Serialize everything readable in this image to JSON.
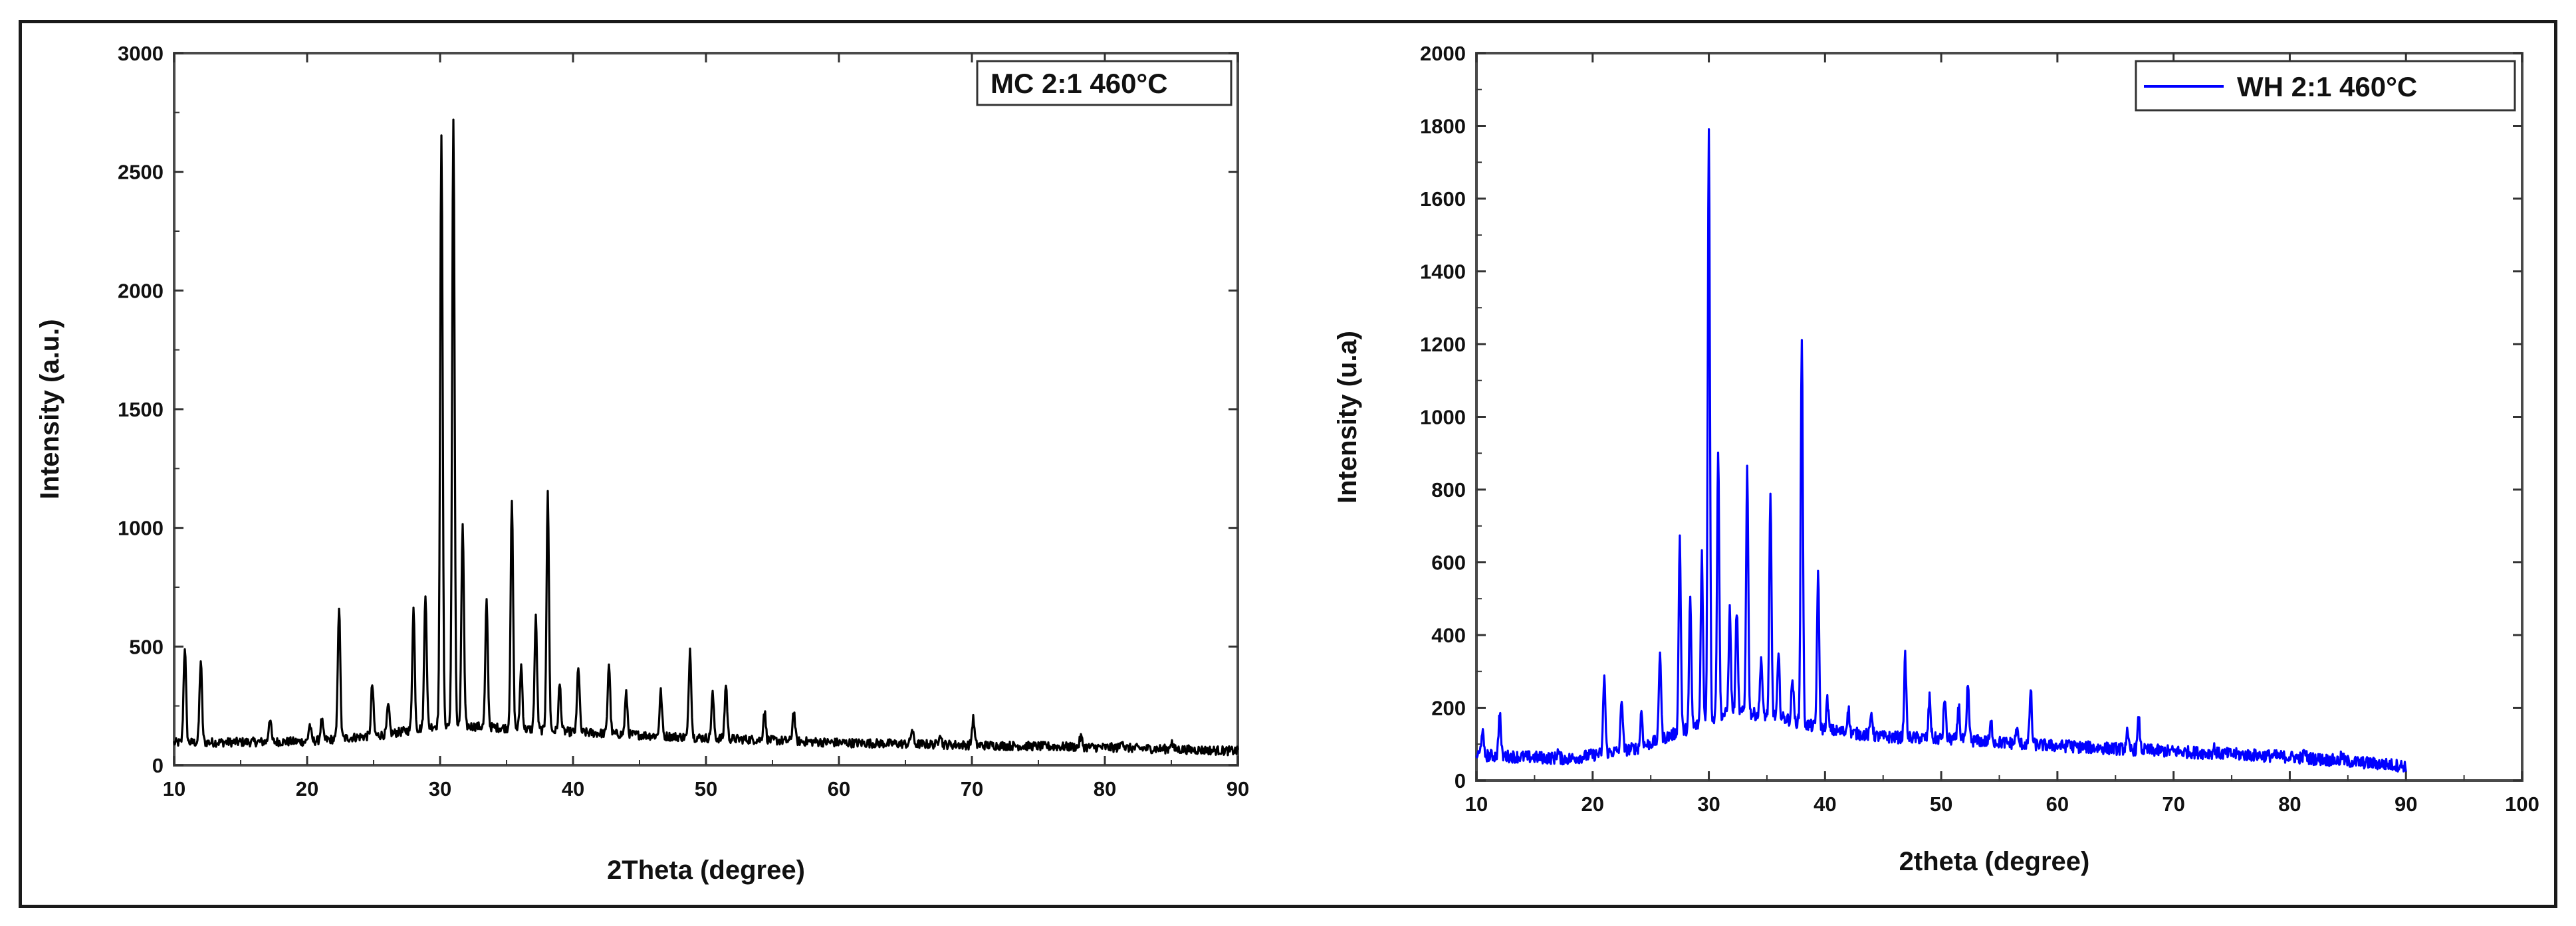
{
  "chart_data": [
    {
      "type": "line",
      "ylabel": "Intensity (a.u.)",
      "xlabel": "2Theta (degree)",
      "xlim": [
        10,
        90
      ],
      "ylim": [
        0,
        3000
      ],
      "xticks": [
        10,
        20,
        30,
        40,
        50,
        60,
        70,
        80,
        90
      ],
      "yticks": [
        0,
        500,
        1000,
        1500,
        2000,
        2500,
        3000
      ],
      "grid": false,
      "legend": {
        "placement": "top-right",
        "marker": "none"
      },
      "series": [
        {
          "name": "MC 2:1 460°C",
          "color": "#000000",
          "baseline": [
            [
              10,
              95
            ],
            [
              20,
              100
            ],
            [
              26,
              130
            ],
            [
              30,
              170
            ],
            [
              34,
              160
            ],
            [
              40,
              140
            ],
            [
              50,
              115
            ],
            [
              60,
              95
            ],
            [
              70,
              85
            ],
            [
              80,
              75
            ],
            [
              90,
              60
            ]
          ],
          "peaks": [
            [
              10.8,
              500
            ],
            [
              12.0,
              440
            ],
            [
              17.2,
              200
            ],
            [
              20.2,
              170
            ],
            [
              21.1,
              190
            ],
            [
              22.4,
              670
            ],
            [
              24.9,
              340
            ],
            [
              26.1,
              250
            ],
            [
              28.0,
              660
            ],
            [
              28.9,
              730
            ],
            [
              30.1,
              2670
            ],
            [
              31.0,
              2710
            ],
            [
              31.7,
              1020
            ],
            [
              33.5,
              690
            ],
            [
              35.4,
              1110
            ],
            [
              36.1,
              420
            ],
            [
              37.2,
              620
            ],
            [
              38.1,
              1140
            ],
            [
              39.0,
              340
            ],
            [
              40.4,
              420
            ],
            [
              42.7,
              430
            ],
            [
              44.0,
              300
            ],
            [
              46.6,
              310
            ],
            [
              48.8,
              490
            ],
            [
              50.5,
              300
            ],
            [
              51.5,
              340
            ],
            [
              54.4,
              230
            ],
            [
              56.6,
              230
            ],
            [
              65.5,
              150
            ],
            [
              67.6,
              140
            ],
            [
              70.1,
              195
            ],
            [
              78.2,
              120
            ],
            [
              81.3,
              110
            ],
            [
              85.0,
              100
            ]
          ]
        }
      ]
    },
    {
      "type": "line",
      "ylabel": "Intensity (u.a)",
      "xlabel": "2theta (degree)",
      "xlim": [
        10,
        100
      ],
      "ylim": [
        0,
        2000
      ],
      "xticks": [
        10,
        20,
        30,
        40,
        50,
        60,
        70,
        80,
        90,
        100
      ],
      "yticks": [
        0,
        200,
        400,
        600,
        800,
        1000,
        1200,
        1400,
        1600,
        1800,
        2000
      ],
      "grid": false,
      "legend": {
        "placement": "top-right",
        "marker": "line"
      },
      "series": [
        {
          "name": "WH 2:1 460°C",
          "color": "#0000ff",
          "x_end": 90,
          "baseline": [
            [
              10,
              70
            ],
            [
              18,
              60
            ],
            [
              24,
              90
            ],
            [
              28,
              140
            ],
            [
              32,
              190
            ],
            [
              36,
              175
            ],
            [
              40,
              140
            ],
            [
              45,
              120
            ],
            [
              50,
              115
            ],
            [
              55,
              105
            ],
            [
              60,
              95
            ],
            [
              70,
              80
            ],
            [
              80,
              65
            ],
            [
              90,
              40
            ]
          ],
          "peaks": [
            [
              10.5,
              140
            ],
            [
              12.0,
              190
            ],
            [
              17.0,
              80
            ],
            [
              21.0,
              290
            ],
            [
              22.5,
              230
            ],
            [
              24.2,
              190
            ],
            [
              25.8,
              360
            ],
            [
              27.5,
              670
            ],
            [
              28.4,
              500
            ],
            [
              29.4,
              630
            ],
            [
              30.0,
              1800
            ],
            [
              30.8,
              910
            ],
            [
              31.8,
              470
            ],
            [
              32.4,
              470
            ],
            [
              33.3,
              860
            ],
            [
              34.5,
              340
            ],
            [
              35.3,
              780
            ],
            [
              36.0,
              340
            ],
            [
              37.2,
              280
            ],
            [
              38.0,
              1220
            ],
            [
              39.4,
              570
            ],
            [
              40.2,
              220
            ],
            [
              42.0,
              200
            ],
            [
              44.0,
              190
            ],
            [
              46.9,
              340
            ],
            [
              49.0,
              230
            ],
            [
              50.3,
              230
            ],
            [
              51.5,
              210
            ],
            [
              52.3,
              260
            ],
            [
              54.3,
              160
            ],
            [
              56.5,
              140
            ],
            [
              57.7,
              250
            ],
            [
              61.0,
              110
            ],
            [
              66.0,
              130
            ],
            [
              67.0,
              170
            ],
            [
              73.5,
              90
            ],
            [
              81.3,
              80
            ],
            [
              84.5,
              70
            ]
          ]
        }
      ]
    }
  ]
}
